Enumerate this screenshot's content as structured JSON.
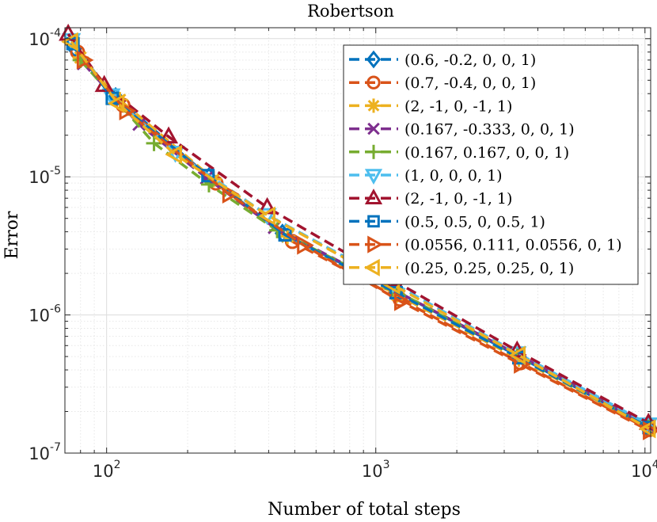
{
  "chart_data": {
    "type": "line",
    "title": "Robertson",
    "xlabel": "Number of total steps",
    "ylabel": "Error",
    "xscale": "log",
    "yscale": "log",
    "xlim": [
      70,
      10500
    ],
    "ylim": [
      1e-07,
      0.00012
    ],
    "x_ticks": [
      {
        "value": 100,
        "base": "10",
        "exp": "2"
      },
      {
        "value": 1000,
        "base": "10",
        "exp": "3"
      },
      {
        "value": 10000,
        "base": "10",
        "exp": "4"
      }
    ],
    "y_ticks": [
      {
        "value": 1e-07,
        "base": "10",
        "exp": "-7"
      },
      {
        "value": 1e-06,
        "base": "10",
        "exp": "-6"
      },
      {
        "value": 1e-05,
        "base": "10",
        "exp": "-5"
      },
      {
        "value": 0.0001,
        "base": "10",
        "exp": "-4"
      }
    ],
    "grid": true,
    "minor_grid": true,
    "legend_position": "top-right",
    "series": [
      {
        "name": "(0.6, -0.2, 0, 0, 1)",
        "color": "#0072BD",
        "marker": "diamond",
        "x": [
          76,
          108,
          240,
          450,
          1180,
          3400,
          10300
        ],
        "y": [
          8.5e-05,
          3.8e-05,
          1e-05,
          3.9e-06,
          1.5e-06,
          5e-07,
          1.55e-07
        ]
      },
      {
        "name": "(0.7, -0.4, 0, 0, 1)",
        "color": "#D95319",
        "marker": "circle",
        "x": [
          78,
          115,
          255,
          490,
          1230,
          3450,
          10400
        ],
        "y": [
          8e-05,
          3.3e-05,
          9e-06,
          3.4e-06,
          1.3e-06,
          4.5e-07,
          1.48e-07
        ]
      },
      {
        "name": "(2, -1, 0, -1, 1)",
        "color": "#EDB120",
        "marker": "asterisk",
        "x": [
          80,
          112,
          250,
          470,
          1200,
          3400,
          10350
        ],
        "y": [
          7.3e-05,
          3.6e-05,
          9.6e-06,
          3.7e-06,
          1.4e-06,
          4.8e-07,
          1.52e-07
        ]
      },
      {
        "name": "(0.167, -0.333, 0, 0, 1)",
        "color": "#7E2F8E",
        "marker": "x",
        "x": [
          82,
          132,
          235,
          420,
          1180,
          3350,
          10300
        ],
        "y": [
          6.6e-05,
          2.4e-05,
          9.8e-06,
          4.3e-06,
          1.5e-06,
          5.2e-07,
          1.58e-07
        ]
      },
      {
        "name": "(0.167, 0.167, 0, 0, 1)",
        "color": "#77AC30",
        "marker": "plus",
        "x": [
          80,
          150,
          240,
          430,
          1150,
          3350,
          10300
        ],
        "y": [
          7e-05,
          1.75e-05,
          8.8e-06,
          4.1e-06,
          1.55e-06,
          5e-07,
          1.55e-07
        ]
      },
      {
        "name": "(1, 0, 0, 0, 1)",
        "color": "#4DBEEE",
        "marker": "triangle-down",
        "x": [
          74,
          104,
          180,
          395,
          1160,
          3350,
          10300
        ],
        "y": [
          9.8e-05,
          3.9e-05,
          1.5e-05,
          5.3e-06,
          1.7e-06,
          5.3e-07,
          1.62e-07
        ]
      },
      {
        "name": "(2, -1, 0, -1, 1)",
        "color": "#A2142F",
        "marker": "triangle-up",
        "x": [
          72,
          98,
          170,
          395,
          1150,
          3350,
          10300
        ],
        "y": [
          0.000108,
          4.6e-05,
          1.95e-05,
          6e-06,
          1.8e-06,
          5.5e-07,
          1.65e-07
        ]
      },
      {
        "name": "(0.5, 0.5, 0, 0.5, 1)",
        "color": "#0072BD",
        "marker": "square",
        "x": [
          75,
          105,
          238,
          460,
          1190,
          3400,
          10350
        ],
        "y": [
          9.2e-05,
          3.7e-05,
          1.02e-05,
          3.8e-06,
          1.45e-06,
          4.9e-07,
          1.53e-07
        ]
      },
      {
        "name": "(0.0556, 0.111, 0.0556, 0, 1)",
        "color": "#D95319",
        "marker": "triangle-right",
        "x": [
          82,
          118,
          285,
          540,
          1240,
          3450,
          10400
        ],
        "y": [
          7e-05,
          3e-05,
          7.5e-06,
          3.2e-06,
          1.25e-06,
          4.4e-07,
          1.45e-07
        ]
      },
      {
        "name": "(0.25, 0.25, 0.25, 0, 1)",
        "color": "#EDB120",
        "marker": "triangle-left",
        "x": [
          74,
          110,
          180,
          400,
          1160,
          3400,
          10350
        ],
        "y": [
          9.5e-05,
          3.4e-05,
          1.45e-05,
          5.2e-06,
          1.65e-06,
          5.1e-07,
          1.5e-07
        ]
      }
    ]
  }
}
